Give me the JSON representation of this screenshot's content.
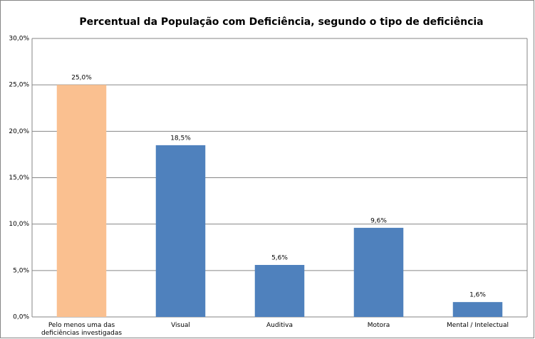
{
  "chart_data": {
    "type": "bar",
    "title": "Percentual da População com Deficiência, segundo o tipo de deficiência",
    "categories": [
      "Pelo menos uma das deficiências investigadas",
      "Visual",
      "Auditiva",
      "Motora",
      "Mental / Intelectual"
    ],
    "values": [
      25.0,
      18.5,
      5.6,
      9.6,
      1.6
    ],
    "value_labels": [
      "25,0%",
      "18,5%",
      "5,6%",
      "9,6%",
      "1,6%"
    ],
    "colors": [
      "#fac090",
      "#4f81bd",
      "#4f81bd",
      "#4f81bd",
      "#4f81bd"
    ],
    "ylim": [
      0,
      30
    ],
    "yticks": [
      {
        "value": 0,
        "label": "0,0%"
      },
      {
        "value": 5,
        "label": "5,0%"
      },
      {
        "value": 10,
        "label": "10,0%"
      },
      {
        "value": 15,
        "label": "15,0%"
      },
      {
        "value": 20,
        "label": "20,0%"
      },
      {
        "value": 25,
        "label": "25,0%"
      },
      {
        "value": 30,
        "label": "30,0%"
      }
    ],
    "grid": true
  }
}
